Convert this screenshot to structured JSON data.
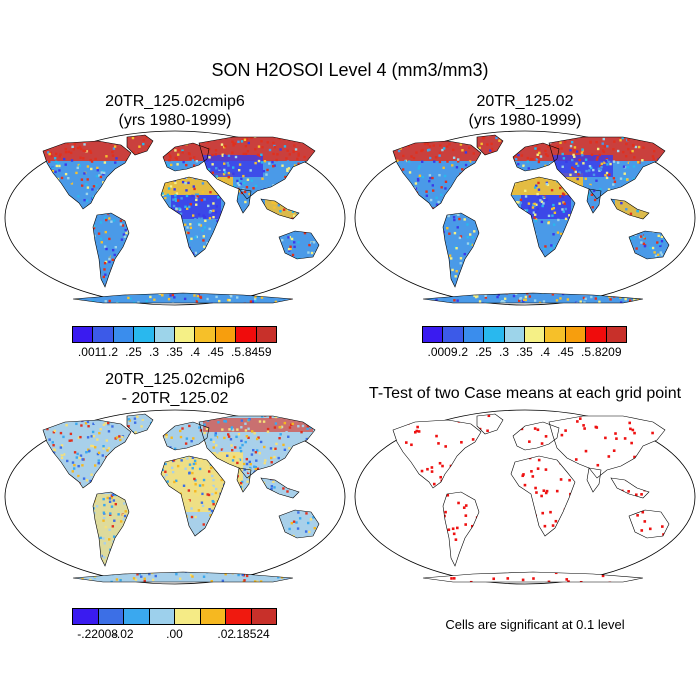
{
  "figure_title": "SON H2OSOI Level 4 (mm3/mm3)",
  "panels": [
    {
      "title_line1": "20TR_125.02cmip6",
      "title_line2": "(yrs 1980-1999)"
    },
    {
      "title_line1": "20TR_125.02",
      "title_line2": "(yrs 1980-1999)"
    },
    {
      "title_line1": "20TR_125.02cmip6",
      "title_line2": "- 20TR_125.02"
    },
    {
      "title_line1": "T-Test of two Case means at each grid point",
      "title_line2": ""
    }
  ],
  "colorbar_1": {
    "colors": [
      "#3a1bf0",
      "#3c5ae8",
      "#3a8ded",
      "#29b8ee",
      "#9dd4ea",
      "#f5f086",
      "#f6c029",
      "#f79e0d",
      "#f00c0c",
      "#c8302a"
    ],
    "labels": [
      ".0011",
      ".2",
      ".25",
      ".3",
      ".35",
      ".4",
      ".45",
      ".5",
      ".8459"
    ]
  },
  "colorbar_2": {
    "colors": [
      "#3a1bf0",
      "#3c5ae8",
      "#3a8ded",
      "#29b8ee",
      "#9dd4ea",
      "#f5f086",
      "#f6c029",
      "#f79e0d",
      "#f00c0c",
      "#c8302a"
    ],
    "labels": [
      ".0009",
      ".2",
      ".25",
      ".3",
      ".35",
      ".4",
      ".45",
      ".5",
      ".8209"
    ]
  },
  "colorbar_3": {
    "colors": [
      "#3a1bf0",
      "#3c6fe6",
      "#3aa8ef",
      "#9dd0ec",
      "#f5eb86",
      "#f6b820",
      "#f0190f",
      "#c8302a"
    ],
    "labels": [
      "-.22008",
      "-.02",
      ".00",
      ".02",
      ".18524"
    ]
  },
  "significance_note": "Cells are significant at 0.1 level",
  "map_colors": {
    "ocean": "#ffffff",
    "wet_high": "#e0301e",
    "mid": "#f5c030",
    "dry_low": "#3a3ae8",
    "land_base": "#4a9ae8",
    "diff_base": "#a8d0ea",
    "diff_pos": "#f5e07a",
    "sig": "#ee1111"
  }
}
